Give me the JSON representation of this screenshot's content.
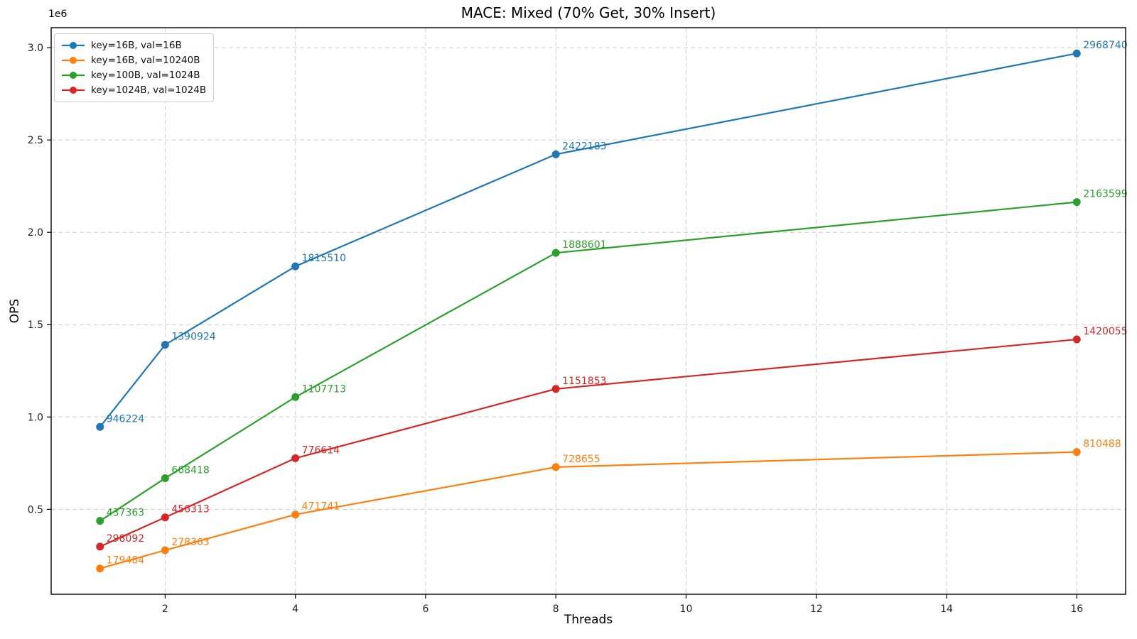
{
  "figure": {
    "title": "MACE: Mixed (70% Get, 30% Insert)",
    "xlabel": "Threads",
    "ylabel": "OPS",
    "offset_text": "1e6"
  },
  "chart_data": {
    "type": "line",
    "title": "MACE: Mixed (70% Get, 30% Insert)",
    "xlabel": "Threads",
    "ylabel": "OPS",
    "x": [
      1,
      2,
      4,
      8,
      16
    ],
    "series": [
      {
        "name": "key=16B, val=16B",
        "color": "#1f77b4",
        "values": [
          946224,
          1390924,
          1815510,
          2422183,
          2968740
        ]
      },
      {
        "name": "key=16B, val=10240B",
        "color": "#ff7f0e",
        "values": [
          179484,
          278363,
          471741,
          728655,
          810488
        ]
      },
      {
        "name": "key=100B, val=1024B",
        "color": "#2ca02c",
        "values": [
          437363,
          668418,
          1107713,
          1888601,
          2163599
        ]
      },
      {
        "name": "key=1024B, val=1024B",
        "color": "#d62728",
        "values": [
          298092,
          456313,
          776614,
          1151853,
          1420055
        ]
      }
    ],
    "point_labels_visible": true,
    "xlim": [
      0.25,
      16.75
    ],
    "ylim": [
      40000,
      3108000
    ],
    "x_ticks": {
      "values": [
        2,
        4,
        6,
        8,
        10,
        12,
        14,
        16
      ],
      "labels": [
        "2",
        "4",
        "6",
        "8",
        "10",
        "12",
        "14",
        "16"
      ]
    },
    "y_ticks": {
      "values": [
        500000,
        1000000,
        1500000,
        2000000,
        2500000,
        3000000
      ],
      "labels": [
        "0.5",
        "1.0",
        "1.5",
        "2.0",
        "2.5",
        "3.0"
      ]
    },
    "y_offset_text": "1e6",
    "grid": true,
    "grid_style": "dashed",
    "legend_position": "upper left"
  },
  "style": {
    "grid_color": "#cdcdcd",
    "spine_color": "#000000",
    "tick_color": "#000000",
    "tick_label_color": "#222222",
    "background": "#ffffff"
  }
}
